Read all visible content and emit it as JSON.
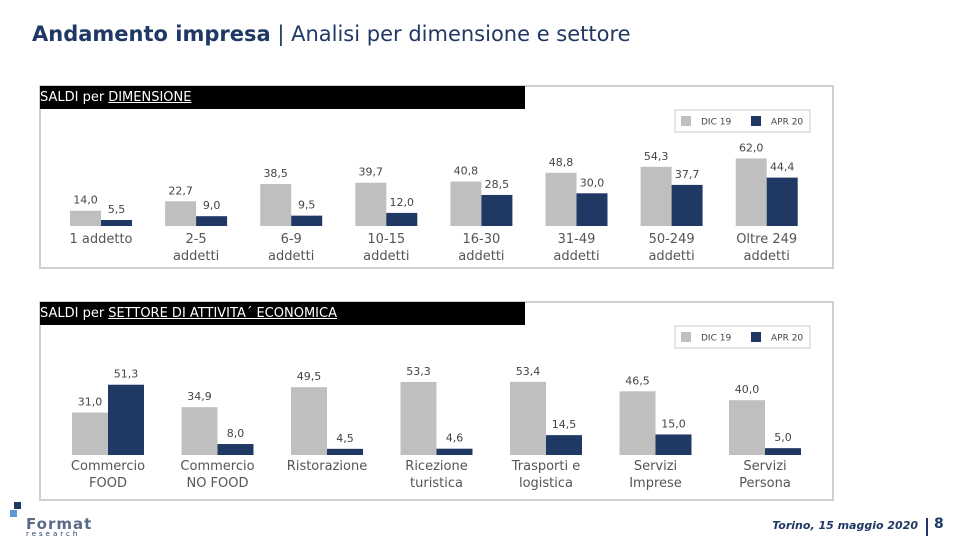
{
  "header": {
    "title": "Andamento impresa",
    "separator": "|",
    "subtitle": "Analisi per dimensione e settore"
  },
  "chart_data": [
    {
      "type": "bar",
      "section_prefix": "SALDI per",
      "title": "DIMENSIONE",
      "legend": "upper right",
      "categories": [
        "1 addetto",
        "2-5\naddetti",
        "6-9\naddetti",
        "10-15\naddetti",
        "16-30\naddetti",
        "31-49\naddetti",
        "50-249\naddetti",
        "Oltre 249\naddetti"
      ],
      "series": [
        {
          "name": "DIC 19",
          "color": "#bfbfbf",
          "values": [
            14.0,
            22.7,
            38.5,
            39.7,
            40.8,
            48.8,
            54.3,
            62.0
          ],
          "value_labels": [
            "14,0",
            "22,7",
            "38,5",
            "39,7",
            "40,8",
            "48,8",
            "54,3",
            "62,0"
          ]
        },
        {
          "name": "APR 20",
          "color": "#1f3864",
          "values": [
            5.5,
            9.0,
            9.5,
            12.0,
            28.5,
            30.0,
            37.7,
            44.4
          ],
          "value_labels": [
            "5,5",
            "9,0",
            "9,5",
            "12,0",
            "28,5",
            "30,0",
            "37,7",
            "44,4"
          ]
        }
      ]
    },
    {
      "type": "bar",
      "section_prefix": "SALDI per",
      "title": "SETTORE DI ATTIVITA´ ECONOMICA",
      "legend": "upper right",
      "categories": [
        "Commercio\nFOOD",
        "Commercio\nNO FOOD",
        "Ristorazione",
        "Ricezione\nturistica",
        "Trasporti e\nlogistica",
        "Servizi\nImprese",
        "Servizi\nPersona"
      ],
      "series": [
        {
          "name": "DIC 19",
          "color": "#bfbfbf",
          "values": [
            31.0,
            34.9,
            49.5,
            53.3,
            53.4,
            46.5,
            40.0
          ],
          "value_labels": [
            "31,0",
            "34,9",
            "49,5",
            "53,3",
            "53,4",
            "46,5",
            "40,0"
          ]
        },
        {
          "name": "APR 20",
          "color": "#1f3864",
          "values": [
            51.3,
            8.0,
            4.5,
            4.6,
            14.5,
            15.0,
            5.0
          ],
          "value_labels": [
            "51,3",
            "8,0",
            "4,5",
            "4,6",
            "14,5",
            "15,0",
            "5,0"
          ]
        }
      ]
    }
  ],
  "footer": {
    "place_date": "Torino, 15 maggio 2020",
    "page": "8",
    "logo": "Format",
    "logo_sub": "research"
  }
}
